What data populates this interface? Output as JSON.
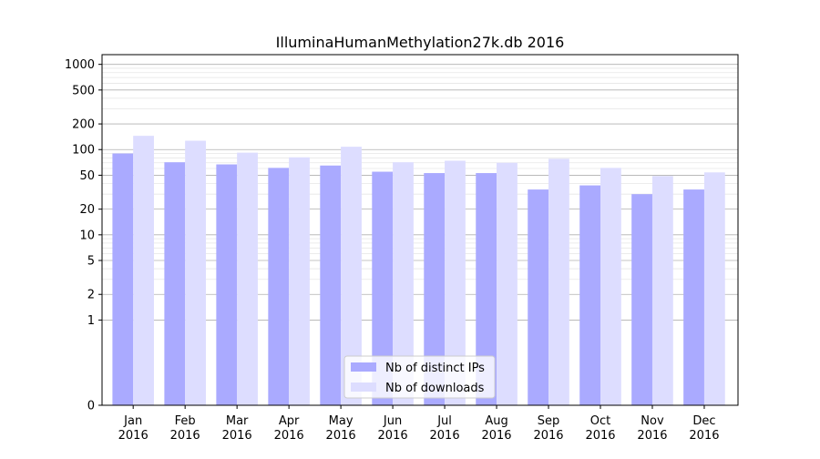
{
  "chart_data": {
    "type": "bar",
    "title": "IlluminaHumanMethylation27k.db 2016",
    "xlabel": "",
    "ylabel": "",
    "scale": "symlog",
    "categories": [
      [
        "Jan",
        "2016"
      ],
      [
        "Feb",
        "2016"
      ],
      [
        "Mar",
        "2016"
      ],
      [
        "Apr",
        "2016"
      ],
      [
        "May",
        "2016"
      ],
      [
        "Jun",
        "2016"
      ],
      [
        "Jul",
        "2016"
      ],
      [
        "Aug",
        "2016"
      ],
      [
        "Sep",
        "2016"
      ],
      [
        "Oct",
        "2016"
      ],
      [
        "Nov",
        "2016"
      ],
      [
        "Dec",
        "2016"
      ]
    ],
    "series": [
      {
        "name": "Nb of distinct IPs",
        "color": "#aaaaff",
        "values": [
          90,
          71,
          67,
          61,
          65,
          55,
          53,
          53,
          34,
          38,
          30,
          34
        ]
      },
      {
        "name": "Nb of downloads",
        "color": "#ddddff",
        "values": [
          145,
          127,
          92,
          81,
          108,
          71,
          74,
          70,
          78,
          61,
          49,
          54
        ]
      }
    ],
    "yticks": [
      0,
      1,
      2,
      5,
      10,
      20,
      50,
      100,
      200,
      500,
      1000
    ],
    "ylim": [
      0,
      1300
    ],
    "grid": true,
    "legend_position": "bottom-center"
  }
}
